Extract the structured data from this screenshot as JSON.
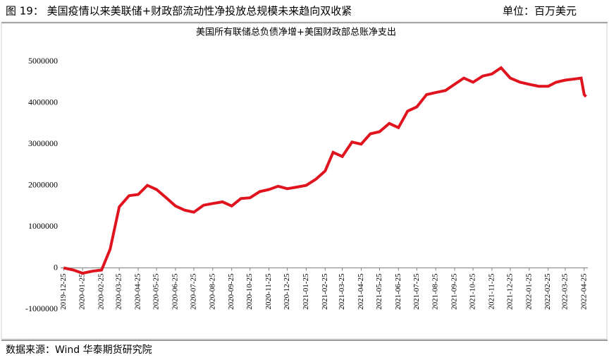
{
  "header": {
    "title": "图 19：  美国疫情以来美联储+财政部流动性净投放总规模未来趋向双收紧",
    "unit": "单位：百万美元"
  },
  "footer": {
    "source": "数据来源：Wind   华泰期货研究院"
  },
  "chart_data": {
    "type": "line",
    "title": "美国所有联储总负债净增+美国财政部总账净支出",
    "x": [
      "2019-12-25",
      "2020-01-10",
      "2020-01-25",
      "2020-02-10",
      "2020-02-25",
      "2020-03-10",
      "2020-03-25",
      "2020-04-10",
      "2020-04-25",
      "2020-05-10",
      "2020-05-25",
      "2020-06-10",
      "2020-06-25",
      "2020-07-10",
      "2020-07-25",
      "2020-08-10",
      "2020-08-25",
      "2020-09-10",
      "2020-09-25",
      "2020-10-10",
      "2020-10-25",
      "2020-11-10",
      "2020-11-25",
      "2020-12-10",
      "2020-12-25",
      "2021-01-10",
      "2021-01-25",
      "2021-02-10",
      "2021-02-25",
      "2021-03-10",
      "2021-03-25",
      "2021-04-10",
      "2021-04-25",
      "2021-05-10",
      "2021-05-25",
      "2021-06-10",
      "2021-06-25",
      "2021-07-10",
      "2021-07-25",
      "2021-08-10",
      "2021-08-25",
      "2021-09-10",
      "2021-09-25",
      "2021-10-10",
      "2021-10-25",
      "2021-11-10",
      "2021-11-25",
      "2021-12-10",
      "2021-12-25",
      "2022-01-10",
      "2022-01-25",
      "2022-02-10",
      "2022-02-25",
      "2022-03-10",
      "2022-03-25",
      "2022-04-10",
      "2022-04-20",
      "2022-04-25",
      "2022-04-28"
    ],
    "series": [
      {
        "name": "美国所有联储总负债净增+美国财政部总账净支出",
        "color": "#e0141e",
        "values": [
          0,
          -50000,
          -130000,
          -80000,
          -50000,
          450000,
          1480000,
          1750000,
          1780000,
          2000000,
          1900000,
          1700000,
          1500000,
          1400000,
          1350000,
          1520000,
          1560000,
          1600000,
          1500000,
          1680000,
          1700000,
          1850000,
          1900000,
          1980000,
          1920000,
          1960000,
          2000000,
          2150000,
          2350000,
          2800000,
          2700000,
          3050000,
          3000000,
          3250000,
          3300000,
          3500000,
          3400000,
          3800000,
          3900000,
          4200000,
          4250000,
          4300000,
          4450000,
          4600000,
          4500000,
          4650000,
          4700000,
          4850000,
          4600000,
          4500000,
          4450000,
          4400000,
          4400000,
          4500000,
          4550000,
          4580000,
          4600000,
          4200000,
          4150000
        ]
      }
    ],
    "xlim": [
      "2019-12-20",
      "2022-05-01"
    ],
    "xticks": [
      "2019-12-25",
      "2020-01-25",
      "2020-02-25",
      "2020-03-25",
      "2020-04-25",
      "2020-05-25",
      "2020-06-25",
      "2020-07-25",
      "2020-08-25",
      "2020-09-25",
      "2020-10-25",
      "2020-11-25",
      "2020-12-25",
      "2021-01-25",
      "2021-02-25",
      "2021-03-25",
      "2021-04-25",
      "2021-05-25",
      "2021-06-25",
      "2021-07-25",
      "2021-08-25",
      "2021-09-25",
      "2021-10-25",
      "2021-11-25",
      "2021-12-25",
      "2022-01-25",
      "2022-02-25",
      "2022-03-25",
      "2022-04-25"
    ],
    "ylim": [
      -1000000,
      5500000
    ],
    "yticks": [
      -1000000,
      0,
      1000000,
      2000000,
      3000000,
      4000000,
      5000000
    ]
  }
}
